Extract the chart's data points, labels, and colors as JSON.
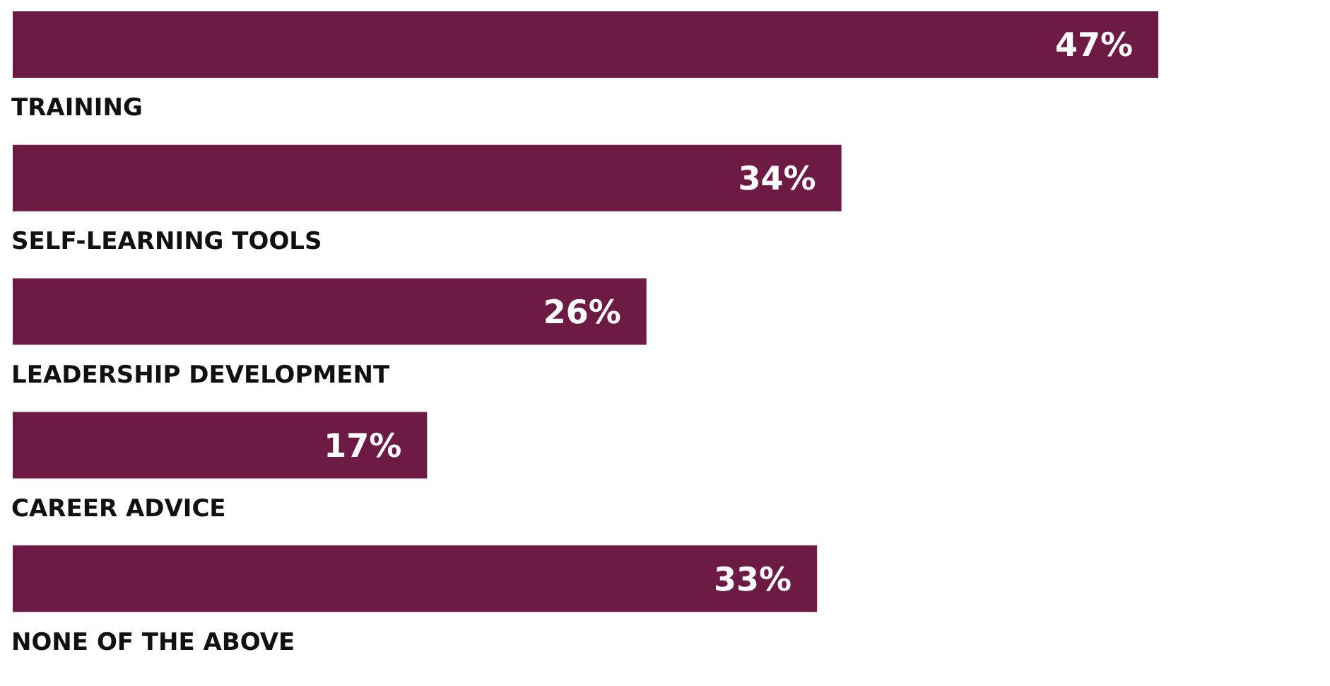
{
  "chart_data": {
    "type": "bar",
    "orientation": "horizontal",
    "categories": [
      "TRAINING",
      "SELF-LEARNING TOOLS",
      "LEADERSHIP DEVELOPMENT",
      "CAREER ADVICE",
      "NONE OF THE ABOVE"
    ],
    "values": [
      47,
      34,
      26,
      17,
      33
    ],
    "value_labels": [
      "47%",
      "34%",
      "26%",
      "17%",
      "33%"
    ],
    "color": "#6d1a45"
  }
}
